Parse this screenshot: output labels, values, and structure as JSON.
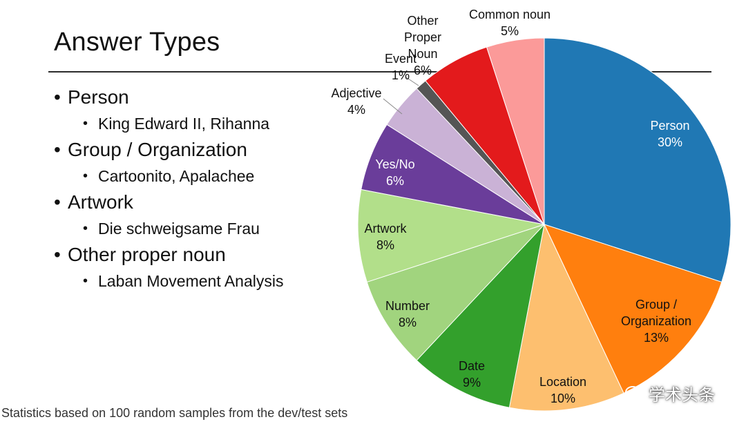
{
  "slide": {
    "title": "Answer Types",
    "bullets": [
      {
        "label": "Person",
        "example": "King Edward II, Rihanna"
      },
      {
        "label": "Group / Organization",
        "example": "Cartoonito,  Apalachee"
      },
      {
        "label": "Artwork",
        "example": "Die schweigsame Frau"
      },
      {
        "label": "Other proper noun",
        "example": "Laban Movement Analysis"
      }
    ],
    "footer": "Statistics based on 100 random samples from the dev/test sets",
    "watermark": "学术头条"
  },
  "chart_data": {
    "type": "pie",
    "start_angle_deg": 0,
    "direction": "clockwise",
    "slices": [
      {
        "label": "Person",
        "value": 30,
        "display": "30%",
        "color": "#2078B4"
      },
      {
        "label": "Group / Organization",
        "value": 13,
        "display": "13%",
        "color": "#FF7F0E"
      },
      {
        "label": "Location",
        "value": 10,
        "display": "10%",
        "color": "#FDBF6F"
      },
      {
        "label": "Date",
        "value": 9,
        "display": "9%",
        "color": "#33A02C"
      },
      {
        "label": "Number",
        "value": 8,
        "display": "8%",
        "color": "#A1D47E"
      },
      {
        "label": "Artwork",
        "value": 8,
        "display": "8%",
        "color": "#B2DF8A"
      },
      {
        "label": "Yes/No",
        "value": 6,
        "display": "6%",
        "color": "#6A3D9A"
      },
      {
        "label": "Adjective",
        "value": 4,
        "display": "4%",
        "color": "#CAB2D6"
      },
      {
        "label": "Event",
        "value": 1,
        "display": "1%",
        "color": "#555555"
      },
      {
        "label": "Other Proper Noun",
        "value": 6,
        "display": "6%",
        "color": "#E31A1C"
      },
      {
        "label": "Common noun",
        "value": 5,
        "display": "5%",
        "color": "#FB9A99"
      }
    ]
  }
}
